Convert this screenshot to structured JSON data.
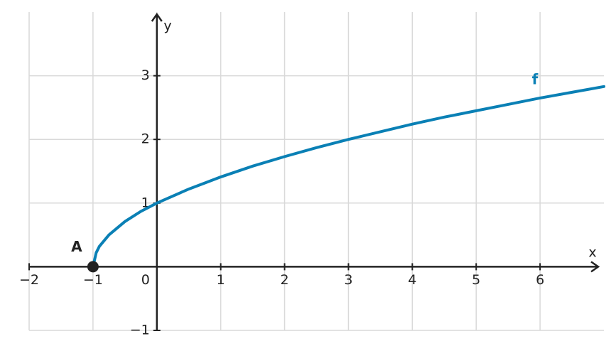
{
  "chart_data": {
    "type": "line",
    "x_label": "x",
    "y_label": "y",
    "xlim": [
      -2,
      7
    ],
    "ylim": [
      -1,
      4
    ],
    "xticks": [
      {
        "value": -2,
        "label": "−2"
      },
      {
        "value": -1,
        "label": "−1"
      },
      0,
      1,
      2,
      3,
      4,
      5,
      6
    ],
    "yticks": [
      {
        "value": -1,
        "label": "−1"
      },
      1,
      2,
      3
    ],
    "grid": true,
    "x": [
      -1,
      -0.95,
      -0.9,
      -0.75,
      -0.5,
      -0.25,
      0,
      0.5,
      1,
      1.5,
      2,
      2.5,
      3,
      3.5,
      4,
      4.5,
      5,
      5.5,
      6,
      6.5,
      7
    ],
    "series": [
      {
        "name": "f",
        "color": "#0a80b5",
        "values": [
          0,
          0.22,
          0.32,
          0.5,
          0.71,
          0.87,
          1,
          1.22,
          1.41,
          1.58,
          1.73,
          1.87,
          2,
          2.12,
          2.24,
          2.35,
          2.45,
          2.55,
          2.65,
          2.74,
          2.83
        ]
      }
    ],
    "points": [
      {
        "label": "A",
        "x": -1,
        "y": 0,
        "color": "#222222"
      }
    ]
  }
}
